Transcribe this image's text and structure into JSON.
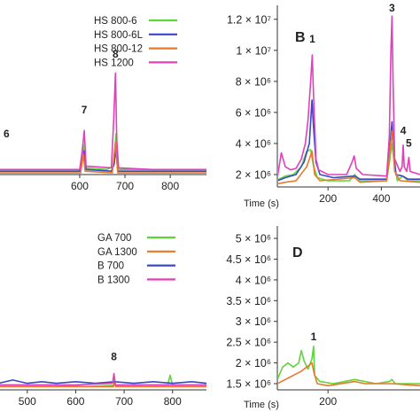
{
  "chart_data": [
    {
      "panel": "A",
      "type": "line",
      "xlabel": "",
      "ylabel": "",
      "x_ticks": [
        600,
        700,
        800
      ],
      "xlim": [
        420,
        880
      ],
      "ylim": [
        0,
        10
      ],
      "series": [
        {
          "name": "HS 800-6",
          "color": "#5fd43b",
          "points": [
            [
              420,
              0.3
            ],
            [
              500,
              0.3
            ],
            [
              600,
              0.3
            ],
            [
              605,
              1.0
            ],
            [
              608,
              1.8
            ],
            [
              612,
              0.4
            ],
            [
              660,
              0.3
            ],
            [
              675,
              0.5
            ],
            [
              680,
              2.4
            ],
            [
              684,
              0.3
            ],
            [
              780,
              0.3
            ],
            [
              880,
              0.3
            ]
          ]
        },
        {
          "name": "HS 800-6L",
          "color": "#3848c8",
          "points": [
            [
              420,
              0.2
            ],
            [
              500,
              0.2
            ],
            [
              600,
              0.2
            ],
            [
              606,
              0.9
            ],
            [
              610,
              1.4
            ],
            [
              614,
              0.3
            ],
            [
              670,
              0.2
            ],
            [
              676,
              0.6
            ],
            [
              680,
              1.6
            ],
            [
              684,
              0.2
            ],
            [
              880,
              0.2
            ]
          ]
        },
        {
          "name": "HS 800-12",
          "color": "#e8782a",
          "points": [
            [
              420,
              0.1
            ],
            [
              500,
              0.1
            ],
            [
              602,
              0.1
            ],
            [
              608,
              1.2
            ],
            [
              612,
              0.2
            ],
            [
              672,
              0.1
            ],
            [
              679,
              1.9
            ],
            [
              684,
              0.1
            ],
            [
              880,
              0.1
            ]
          ]
        },
        {
          "name": "HS 1200",
          "color": "#e040b8",
          "points": [
            [
              420,
              0.3
            ],
            [
              520,
              0.3
            ],
            [
              600,
              0.3
            ],
            [
              606,
              1.5
            ],
            [
              610,
              2.6
            ],
            [
              614,
              0.5
            ],
            [
              670,
              0.4
            ],
            [
              675,
              3.2
            ],
            [
              679,
              6.0
            ],
            [
              682,
              2.0
            ],
            [
              686,
              0.4
            ],
            [
              760,
              0.3
            ],
            [
              880,
              0.3
            ]
          ]
        }
      ],
      "annotations": [
        {
          "text": "6",
          "x": 425,
          "y": 2.2
        },
        {
          "text": "7",
          "x": 610,
          "y": 3.6
        },
        {
          "text": "8",
          "x": 679,
          "y": 6.9
        }
      ]
    },
    {
      "panel": "B",
      "type": "line",
      "xlabel": "Time (s)",
      "ylabel": "",
      "x_ticks": [
        200,
        400
      ],
      "y_tick_labels": [
        "2 × 10⁶",
        "4 × 10⁶",
        "6 × 10⁶",
        "8 × 10⁶",
        "1 × 10⁷",
        "1.2 × 10⁷"
      ],
      "y_ticks": [
        2000000,
        4000000,
        6000000,
        8000000,
        10000000,
        12000000
      ],
      "xlim": [
        10,
        545
      ],
      "ylim": [
        1200000,
        12900000
      ],
      "series": [
        {
          "name": "HS 800-6",
          "color": "#5fd43b",
          "points": [
            [
              10,
              1650000.0
            ],
            [
              40,
              1900000.0
            ],
            [
              70,
              2000000.0
            ],
            [
              100,
              2500000.0
            ],
            [
              120,
              3500000.0
            ],
            [
              135,
              3600000.0
            ],
            [
              145,
              2600000.0
            ],
            [
              160,
              1800000.0
            ],
            [
              200,
              1600000.0
            ],
            [
              280,
              1600000.0
            ],
            [
              300,
              2000000.0
            ],
            [
              320,
              1600000.0
            ],
            [
              420,
              1600000.0
            ],
            [
              432,
              3000000.0
            ],
            [
              440,
              4000000.0
            ],
            [
              448,
              2800000.0
            ],
            [
              460,
              1600000.0
            ],
            [
              480,
              1900000.0
            ],
            [
              500,
              1600000.0
            ],
            [
              545,
              1600000.0
            ]
          ]
        },
        {
          "name": "HS 800-6L",
          "color": "#3848c8",
          "points": [
            [
              10,
              1600000.0
            ],
            [
              40,
              1800000.0
            ],
            [
              80,
              2000000.0
            ],
            [
              110,
              2800000.0
            ],
            [
              130,
              4000000.0
            ],
            [
              140,
              6800000.0
            ],
            [
              146,
              5000000.0
            ],
            [
              155,
              2800000.0
            ],
            [
              170,
              2000000.0
            ],
            [
              220,
              1800000.0
            ],
            [
              300,
              1900000.0
            ],
            [
              320,
              1700000.0
            ],
            [
              420,
              1700000.0
            ],
            [
              432,
              3800000.0
            ],
            [
              440,
              5400000.0
            ],
            [
              446,
              3500000.0
            ],
            [
              455,
              2000000.0
            ],
            [
              480,
              1900000.0
            ],
            [
              500,
              1700000.0
            ],
            [
              545,
              1700000.0
            ]
          ]
        },
        {
          "name": "HS 800-12",
          "color": "#e8782a",
          "points": [
            [
              10,
              1400000.0
            ],
            [
              40,
              1500000.0
            ],
            [
              80,
              1600000.0
            ],
            [
              120,
              2500000.0
            ],
            [
              140,
              3500000.0
            ],
            [
              150,
              2000000.0
            ],
            [
              170,
              1600000.0
            ],
            [
              300,
              1800000.0
            ],
            [
              320,
              1500000.0
            ],
            [
              420,
              1600000.0
            ],
            [
              440,
              4800000.0
            ],
            [
              450,
              2200000.0
            ],
            [
              470,
              1600000.0
            ],
            [
              545,
              1500000.0
            ]
          ]
        },
        {
          "name": "HS 1200",
          "color": "#e040b8",
          "points": [
            [
              10,
              1800000.0
            ],
            [
              25,
              3400000.0
            ],
            [
              40,
              2500000.0
            ],
            [
              60,
              2300000.0
            ],
            [
              80,
              2400000.0
            ],
            [
              100,
              3000000.0
            ],
            [
              115,
              4000000.0
            ],
            [
              125,
              5500000.0
            ],
            [
              135,
              8000000.0
            ],
            [
              141,
              9700000.0
            ],
            [
              146,
              7000000.0
            ],
            [
              155,
              3000000.0
            ],
            [
              165,
              2300000.0
            ],
            [
              200,
              2000000.0
            ],
            [
              270,
              2000000.0
            ],
            [
              290,
              2800000.0
            ],
            [
              298,
              3200000.0
            ],
            [
              306,
              2400000.0
            ],
            [
              330,
              2000000.0
            ],
            [
              420,
              1900000.0
            ],
            [
              430,
              4500000.0
            ],
            [
              436,
              10000000.0
            ],
            [
              440,
              12200000.0
            ],
            [
              444,
              8000000.0
            ],
            [
              450,
              3000000.0
            ],
            [
              470,
              2200000.0
            ],
            [
              478,
              2500000.0
            ],
            [
              482,
              3900000.0
            ],
            [
              486,
              2500000.0
            ],
            [
              495,
              2200000.0
            ],
            [
              503,
              3100000.0
            ],
            [
              508,
              2200000.0
            ],
            [
              545,
              2000000.0
            ]
          ]
        }
      ],
      "annotations": [
        {
          "text": "1",
          "x": 141,
          "y": 10500000
        },
        {
          "text": "3",
          "x": 440,
          "y": 12500000
        },
        {
          "text": "4",
          "x": 482,
          "y": 4600000
        },
        {
          "text": "5",
          "x": 503,
          "y": 3800000
        }
      ]
    },
    {
      "panel": "C",
      "type": "line",
      "xlabel": "",
      "ylabel": "",
      "x_ticks": [
        500,
        600,
        700,
        800
      ],
      "xlim": [
        440,
        870
      ],
      "ylim": [
        0,
        10
      ],
      "series": [
        {
          "name": "GA 700",
          "color": "#5fd43b",
          "points": [
            [
              440,
              0.3
            ],
            [
              560,
              0.3
            ],
            [
              620,
              0.2
            ],
            [
              700,
              0.3
            ],
            [
              790,
              0.3
            ],
            [
              795,
              0.9
            ],
            [
              800,
              0.3
            ],
            [
              870,
              0.3
            ]
          ]
        },
        {
          "name": "GA 1300",
          "color": "#e8782a",
          "points": [
            [
              440,
              0.2
            ],
            [
              600,
              0.2
            ],
            [
              678,
              0.2
            ],
            [
              680,
              0.6
            ],
            [
              683,
              0.2
            ],
            [
              870,
              0.2
            ]
          ]
        },
        {
          "name": "B 700",
          "color": "#3848c8",
          "points": [
            [
              440,
              0.4
            ],
            [
              470,
              0.6
            ],
            [
              500,
              0.4
            ],
            [
              530,
              0.5
            ],
            [
              560,
              0.4
            ],
            [
              600,
              0.5
            ],
            [
              640,
              0.4
            ],
            [
              680,
              0.5
            ],
            [
              720,
              0.4
            ],
            [
              760,
              0.5
            ],
            [
              800,
              0.4
            ],
            [
              840,
              0.5
            ],
            [
              870,
              0.4
            ]
          ]
        },
        {
          "name": "B 1300",
          "color": "#e040b8",
          "points": [
            [
              440,
              0.3
            ],
            [
              600,
              0.3
            ],
            [
              676,
              0.4
            ],
            [
              679,
              1.0
            ],
            [
              682,
              0.3
            ],
            [
              870,
              0.3
            ]
          ]
        }
      ],
      "annotations": [
        {
          "text": "8",
          "x": 679,
          "y": 1.8
        }
      ]
    },
    {
      "panel": "D",
      "type": "line",
      "xlabel": "Time (s)",
      "ylabel": "",
      "x_ticks": [
        200
      ],
      "y_tick_labels": [
        "1.5 × 10⁶",
        "2 × 10⁶",
        "2.5 × 10⁶",
        "3 × 10⁶",
        "3.5 × 10⁶",
        "4 × 10⁶",
        "4.5 × 10⁶",
        "5 × 10⁶"
      ],
      "y_ticks": [
        1500000,
        2000000,
        2500000,
        3000000,
        3500000,
        4000000,
        4500000,
        5000000
      ],
      "xlim": [
        10,
        545
      ],
      "ylim": [
        1350000,
        5300000
      ],
      "series": [
        {
          "name": "GA 700",
          "color": "#5fd43b",
          "points": [
            [
              10,
              1600000.0
            ],
            [
              30,
              1900000.0
            ],
            [
              50,
              2000000.0
            ],
            [
              70,
              1900000.0
            ],
            [
              90,
              2000000.0
            ],
            [
              100,
              2300000.0
            ],
            [
              110,
              2050000.0
            ],
            [
              125,
              1850000.0
            ],
            [
              140,
              2100000.0
            ],
            [
              146,
              2400000.0
            ],
            [
              150,
              1700000.0
            ],
            [
              170,
              1550000.0
            ],
            [
              220,
              1500000.0
            ],
            [
              300,
              1600000.0
            ],
            [
              340,
              1550000.0
            ],
            [
              380,
              1500000.0
            ],
            [
              430,
              1550000.0
            ],
            [
              440,
              1600000.0
            ],
            [
              452,
              1500000.0
            ],
            [
              545,
              1500000.0
            ]
          ]
        },
        {
          "name": "GA 1300",
          "color": "#e8782a",
          "points": [
            [
              10,
              1500000.0
            ],
            [
              40,
              1600000.0
            ],
            [
              70,
              1700000.0
            ],
            [
              100,
              1800000.0
            ],
            [
              120,
              1900000.0
            ],
            [
              140,
              2000000.0
            ],
            [
              148,
              1750000.0
            ],
            [
              160,
              1500000.0
            ],
            [
              200,
              1450000.0
            ],
            [
              300,
              1550000.0
            ],
            [
              340,
              1500000.0
            ],
            [
              440,
              1500000.0
            ],
            [
              545,
              1450000.0
            ]
          ]
        }
      ],
      "annotations": [
        {
          "text": "1",
          "x": 146,
          "y": 2550000
        }
      ]
    }
  ],
  "panels": [
    {
      "label": "",
      "legend": [
        "HS 800-6",
        "HS 800-6L",
        "HS 800-12",
        "HS 1200"
      ]
    },
    {
      "label": "B",
      "legend": []
    },
    {
      "label": "",
      "legend": [
        "GA 700",
        "GA 1300",
        "B 700",
        "B 1300"
      ]
    },
    {
      "label": "D",
      "legend": []
    }
  ]
}
